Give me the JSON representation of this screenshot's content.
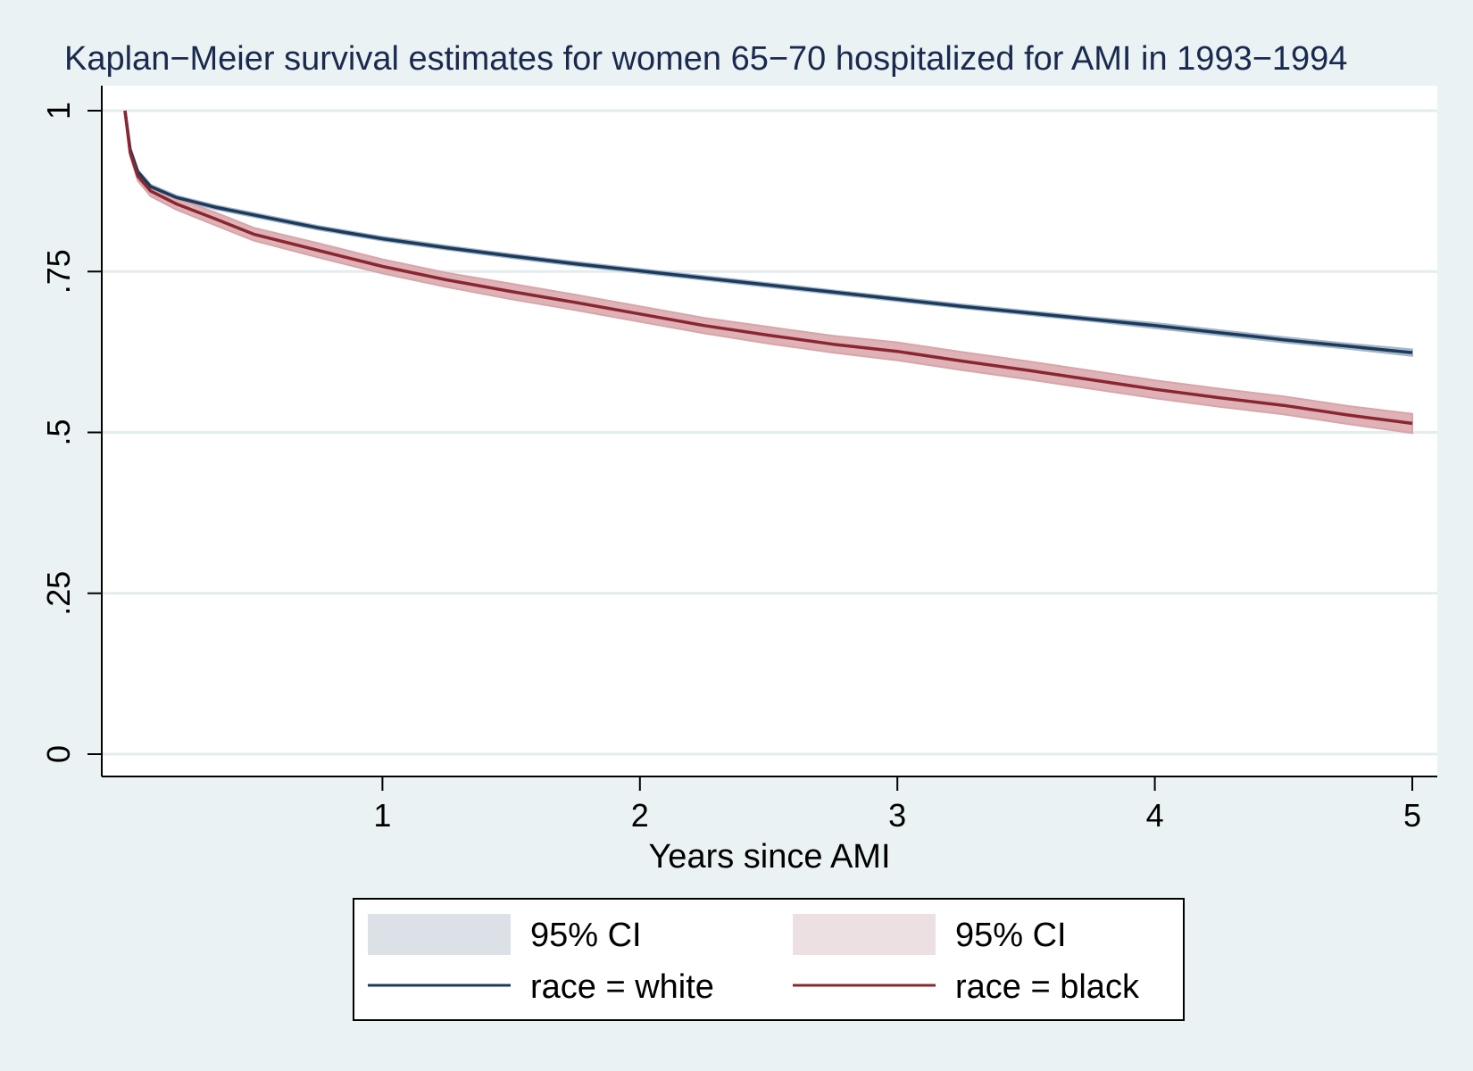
{
  "chart_data": {
    "type": "line",
    "title": "Kaplan−Meier survival estimates for women 65−70 hospitalized for AMI in 1993−1994",
    "xlabel": "Years since AMI",
    "ylabel": "",
    "xlim": [
      0,
      5
    ],
    "ylim": [
      0,
      1
    ],
    "x_ticks": [
      1,
      2,
      3,
      4,
      5
    ],
    "x_tick_labels": [
      "1",
      "2",
      "3",
      "4",
      "5"
    ],
    "y_ticks": [
      0,
      0.25,
      0.5,
      0.75,
      1
    ],
    "y_tick_labels": [
      "0",
      ".25",
      ".5",
      ".75",
      "1"
    ],
    "grid": true,
    "legend_position": "bottom",
    "x": [
      0,
      0.02,
      0.05,
      0.1,
      0.2,
      0.35,
      0.5,
      0.75,
      1,
      1.25,
      1.5,
      1.75,
      2,
      2.25,
      2.5,
      2.75,
      3,
      3.25,
      3.5,
      3.75,
      4,
      4.25,
      4.5,
      4.75,
      5
    ],
    "series": [
      {
        "name": "race = white",
        "color": "#1b3a5c",
        "ci_color": "#a3b5c8",
        "values": [
          1,
          0.94,
          0.905,
          0.882,
          0.865,
          0.85,
          0.838,
          0.818,
          0.801,
          0.787,
          0.774,
          0.762,
          0.751,
          0.74,
          0.729,
          0.718,
          0.707,
          0.696,
          0.686,
          0.676,
          0.666,
          0.655,
          0.644,
          0.634,
          0.624
        ],
        "ci_lower": [
          1,
          0.938,
          0.902,
          0.879,
          0.862,
          0.847,
          0.835,
          0.815,
          0.798,
          0.784,
          0.771,
          0.759,
          0.748,
          0.737,
          0.726,
          0.715,
          0.704,
          0.693,
          0.683,
          0.673,
          0.662,
          0.651,
          0.64,
          0.63,
          0.619
        ],
        "ci_upper": [
          1,
          0.942,
          0.908,
          0.885,
          0.868,
          0.853,
          0.841,
          0.821,
          0.804,
          0.79,
          0.777,
          0.765,
          0.754,
          0.743,
          0.732,
          0.721,
          0.71,
          0.699,
          0.689,
          0.679,
          0.67,
          0.659,
          0.648,
          0.638,
          0.629
        ]
      },
      {
        "name": "race = black",
        "color": "#8b2631",
        "ci_color": "#d8a5a9",
        "values": [
          1,
          0.935,
          0.898,
          0.875,
          0.855,
          0.832,
          0.808,
          0.783,
          0.758,
          0.737,
          0.719,
          0.702,
          0.684,
          0.666,
          0.651,
          0.637,
          0.626,
          0.611,
          0.597,
          0.582,
          0.567,
          0.554,
          0.542,
          0.527,
          0.514
        ],
        "ci_lower": [
          1,
          0.93,
          0.891,
          0.867,
          0.846,
          0.822,
          0.798,
          0.772,
          0.747,
          0.726,
          0.707,
          0.69,
          0.672,
          0.654,
          0.638,
          0.624,
          0.612,
          0.597,
          0.583,
          0.568,
          0.553,
          0.54,
          0.528,
          0.513,
          0.499
        ],
        "ci_upper": [
          1,
          0.94,
          0.905,
          0.883,
          0.864,
          0.842,
          0.818,
          0.794,
          0.769,
          0.748,
          0.731,
          0.714,
          0.696,
          0.678,
          0.664,
          0.65,
          0.64,
          0.625,
          0.611,
          0.596,
          0.581,
          0.568,
          0.556,
          0.541,
          0.529
        ]
      }
    ],
    "legend": [
      {
        "label": "95% CI",
        "kind": "band",
        "series": "race = white",
        "color": "#dce1e8"
      },
      {
        "label": "95% CI",
        "kind": "band",
        "series": "race = black",
        "color": "#ede0e2"
      },
      {
        "label": "race = white",
        "kind": "line",
        "color": "#1b3a5c"
      },
      {
        "label": "race = black",
        "kind": "line",
        "color": "#8b2631"
      }
    ]
  },
  "colors": {
    "background": "#eaf2f3",
    "plot_area": "#ffffff",
    "grid": "#e3ecee",
    "axis": "#000000",
    "title": "#1a2a4f"
  }
}
